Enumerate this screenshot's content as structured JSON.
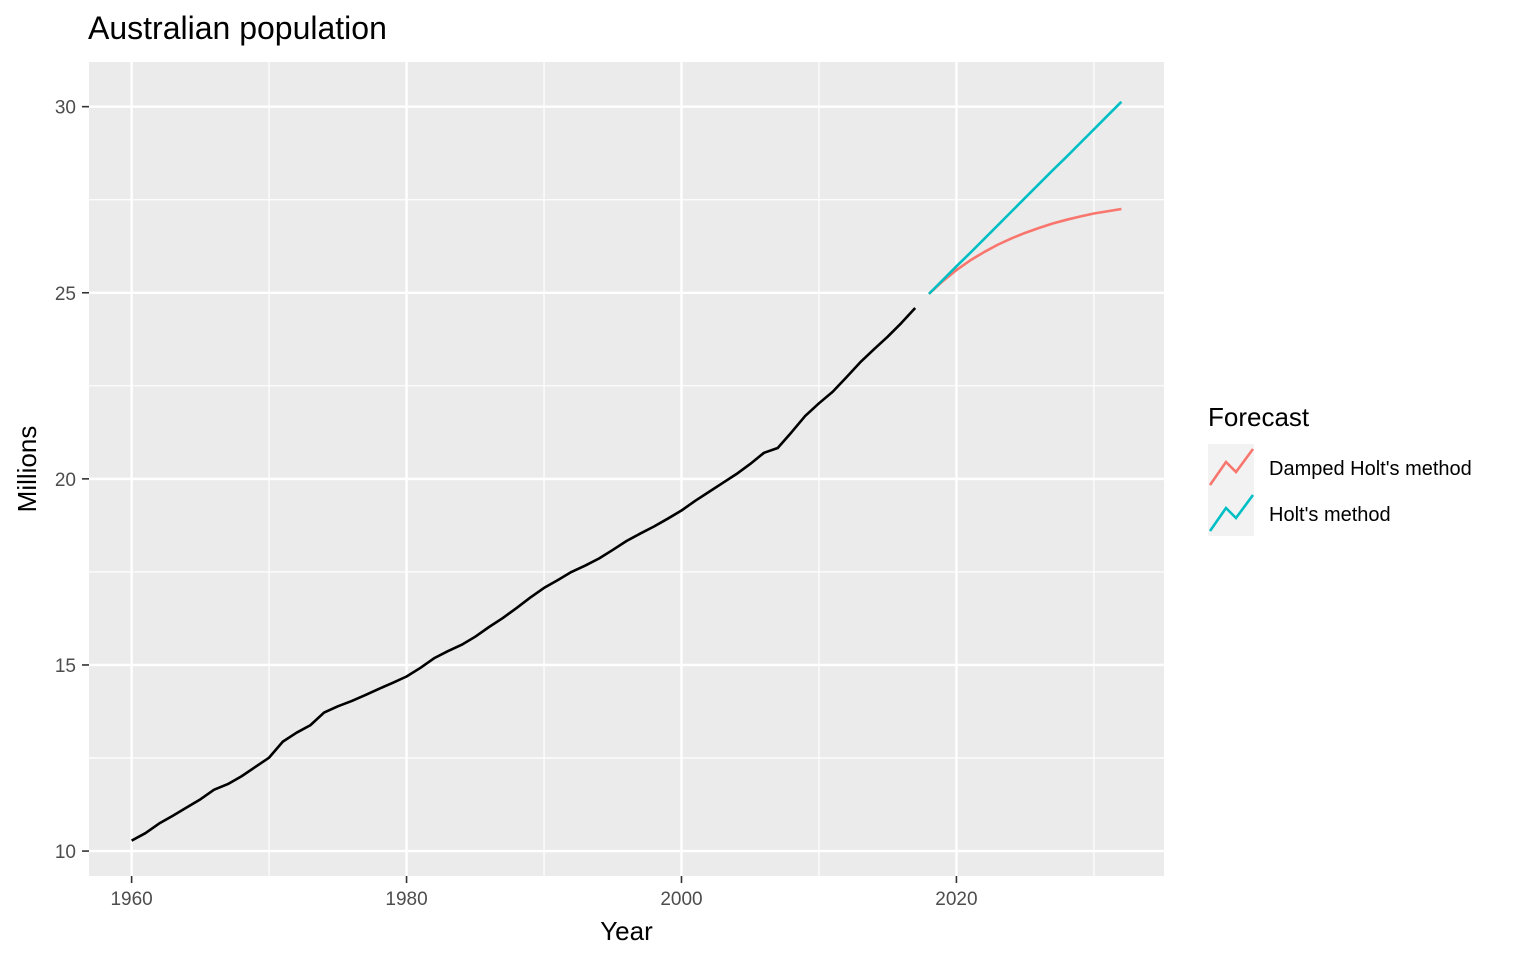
{
  "chart_data": {
    "type": "line",
    "title": "Australian population",
    "xlabel": "Year",
    "ylabel": "Millions",
    "xlim": [
      1956.9,
      2035.1
    ],
    "ylim": [
      9.33,
      31.2
    ],
    "x_ticks": [
      1960,
      1980,
      2000,
      2020
    ],
    "x_tick_labels": [
      "1960",
      "1980",
      "2000",
      "2020"
    ],
    "x_minor_ticks": [
      1970,
      1990,
      2010,
      2030
    ],
    "y_ticks": [
      10,
      15,
      20,
      25,
      30
    ],
    "y_tick_labels": [
      "10",
      "15",
      "20",
      "25",
      "30"
    ],
    "y_minor_ticks": [
      12.5,
      17.5,
      22.5,
      27.5
    ],
    "grid": true,
    "legend": {
      "title": "Forecast",
      "position": "right",
      "entries": [
        "Damped Holt's method",
        "Holt's method"
      ]
    },
    "colors": {
      "observed": "#000000",
      "damped": "#F8766D",
      "holt": "#00BFC4",
      "panel": "#EBEBEB",
      "grid": "#FFFFFF"
    },
    "observed": {
      "x": [
        1960,
        1961,
        1962,
        1963,
        1964,
        1965,
        1966,
        1967,
        1968,
        1969,
        1970,
        1971,
        1972,
        1973,
        1974,
        1975,
        1976,
        1977,
        1978,
        1979,
        1980,
        1981,
        1982,
        1983,
        1984,
        1985,
        1986,
        1987,
        1988,
        1989,
        1990,
        1991,
        1992,
        1993,
        1994,
        1995,
        1996,
        1997,
        1998,
        1999,
        2000,
        2001,
        2002,
        2003,
        2004,
        2005,
        2006,
        2007,
        2008,
        2009,
        2010,
        2011,
        2012,
        2013,
        2014,
        2015,
        2016,
        2017
      ],
      "y": [
        10.28,
        10.48,
        10.74,
        10.95,
        11.17,
        11.39,
        11.65,
        11.8,
        12.01,
        12.26,
        12.51,
        12.94,
        13.18,
        13.38,
        13.72,
        13.89,
        14.03,
        14.19,
        14.36,
        14.52,
        14.69,
        14.92,
        15.18,
        15.37,
        15.54,
        15.76,
        16.02,
        16.26,
        16.53,
        16.81,
        17.07,
        17.28,
        17.5,
        17.67,
        17.86,
        18.09,
        18.33,
        18.53,
        18.72,
        18.93,
        19.15,
        19.41,
        19.65,
        19.89,
        20.13,
        20.4,
        20.7,
        20.83,
        21.25,
        21.69,
        22.03,
        22.34,
        22.73,
        23.13,
        23.48,
        23.82,
        24.19,
        24.59
      ]
    },
    "series": [
      {
        "name": "Damped Holt's method",
        "x": [
          2018,
          2019,
          2020,
          2021,
          2022,
          2023,
          2024,
          2025,
          2026,
          2027,
          2028,
          2029,
          2030,
          2031,
          2032
        ],
        "y": [
          24.97,
          25.31,
          25.61,
          25.87,
          26.09,
          26.29,
          26.46,
          26.61,
          26.74,
          26.86,
          26.96,
          27.05,
          27.13,
          27.19,
          27.25
        ]
      },
      {
        "name": "Holt's method",
        "x": [
          2018,
          2019,
          2020,
          2021,
          2022,
          2023,
          2024,
          2025,
          2026,
          2027,
          2028,
          2029,
          2030,
          2031,
          2032
        ],
        "y": [
          24.97,
          25.34,
          25.71,
          26.07,
          26.44,
          26.81,
          27.18,
          27.55,
          27.92,
          28.29,
          28.65,
          29.02,
          29.39,
          29.76,
          30.13
        ]
      }
    ]
  }
}
